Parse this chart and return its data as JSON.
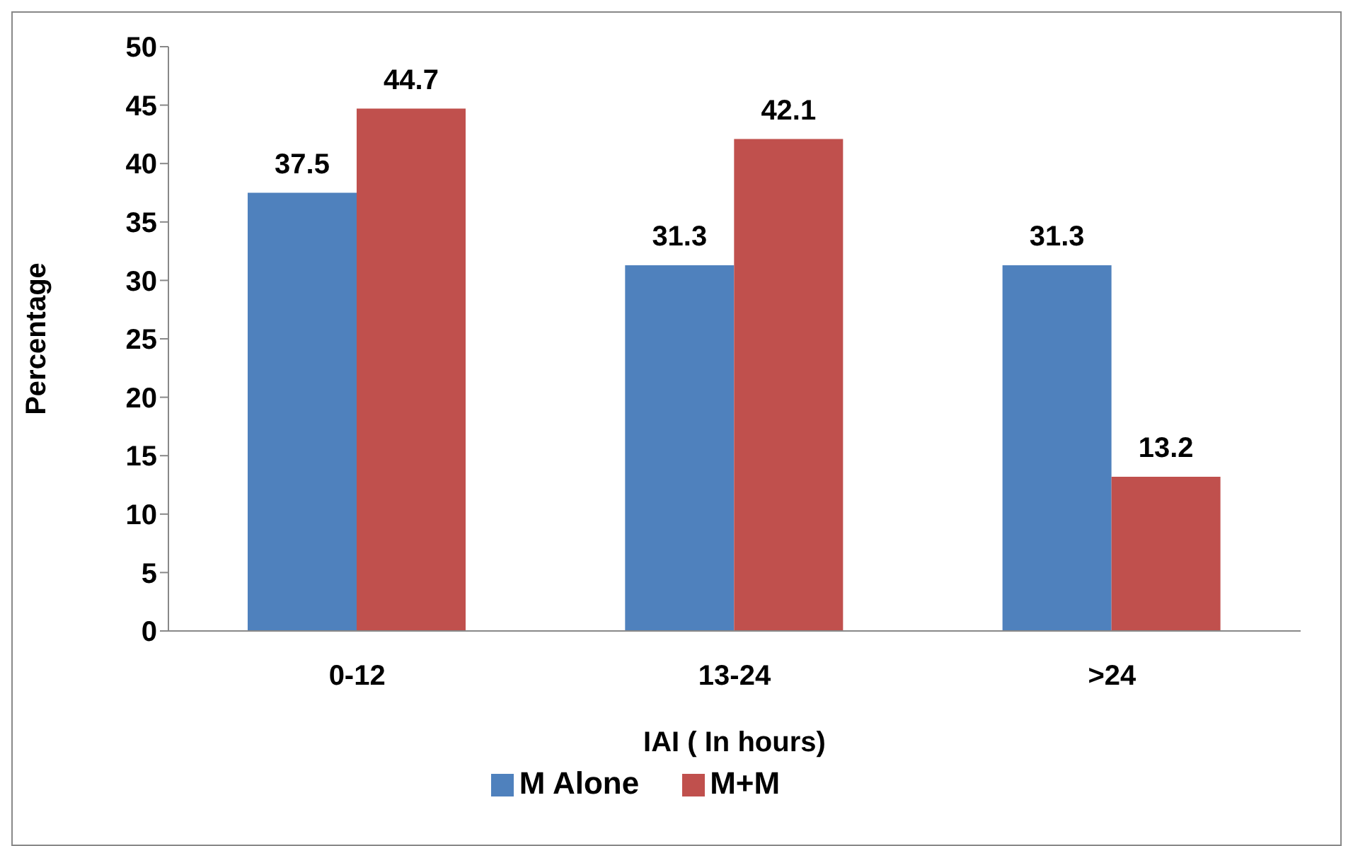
{
  "chart_data": {
    "type": "bar",
    "xlabel": "IAI ( In hours)",
    "ylabel": "Percentage",
    "categories": [
      "0-12",
      "13-24",
      ">24"
    ],
    "series": [
      {
        "name": "M Alone",
        "color": "#4f81bd",
        "values": [
          37.5,
          31.3,
          31.3
        ]
      },
      {
        "name": "M+M",
        "color": "#c0504d",
        "values": [
          44.7,
          42.1,
          13.2
        ]
      }
    ],
    "ylim": [
      0,
      50
    ],
    "yticks": [
      0,
      5,
      10,
      15,
      20,
      25,
      30,
      35,
      40,
      45,
      50
    ],
    "data_labels": true,
    "legend": "bottom"
  }
}
